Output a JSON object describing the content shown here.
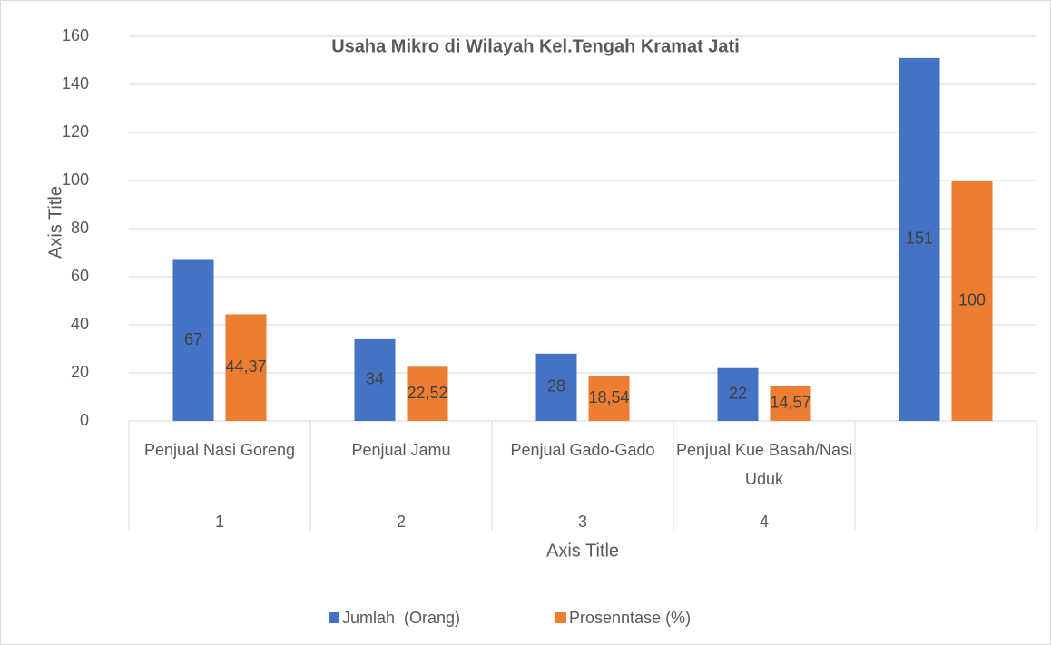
{
  "chart_data": {
    "type": "bar",
    "title": "Usaha Mikro di Wilayah Kel.Tengah Kramat Jati",
    "categories": [
      "Penjual Nasi Goreng",
      "Penjual Jamu",
      "Penjual Gado-Gado",
      "Penjual Kue Basah/Nasi Uduk",
      null
    ],
    "category_groups": [
      "1",
      "2",
      "3",
      "4",
      null
    ],
    "x_label": "Axis Title",
    "y_label": "Axis Title",
    "series": [
      {
        "name": "Jumlah  (Orang)",
        "color": "#4472c4",
        "values": [
          67,
          34,
          28,
          22,
          151
        ]
      },
      {
        "name": "Prosenntase (%)",
        "color": "#ed7d31",
        "values": [
          44.37,
          22.52,
          18.54,
          14.57,
          100
        ],
        "value_labels": [
          "44,37",
          "22,52",
          "18,54",
          "14,57",
          "100"
        ]
      }
    ],
    "ylim": [
      0,
      160
    ],
    "yticks": [
      0,
      20,
      40,
      60,
      80,
      100,
      120,
      140,
      160
    ],
    "grid": true,
    "legend": "bottom"
  }
}
